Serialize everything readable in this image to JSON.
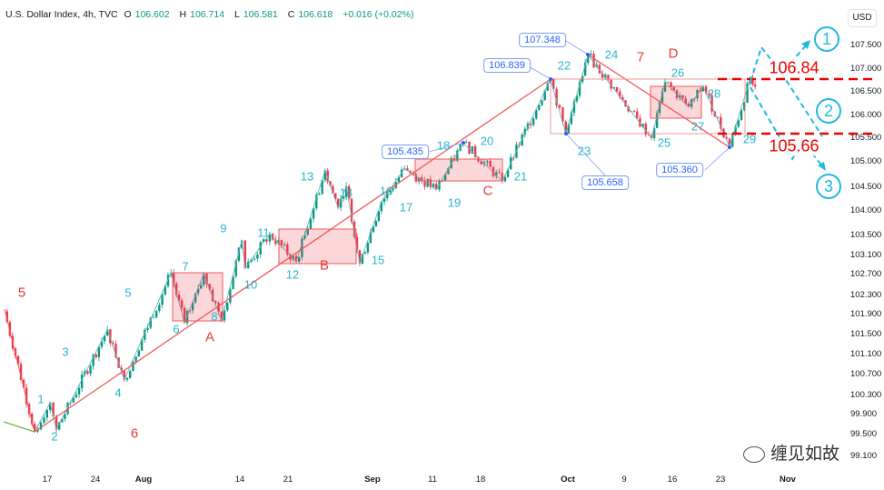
{
  "header": {
    "symbol": "U.S. Dollar Index, 4h, TVC",
    "open_label": "O",
    "open": "106.602",
    "high_label": "H",
    "high": "106.714",
    "low_label": "L",
    "low": "106.581",
    "close_label": "C",
    "close": "106.618",
    "change": "+0.016 (+0.02%)"
  },
  "currency": "USD",
  "y_axis": [
    "107.500",
    "107.000",
    "106.500",
    "106.000",
    "105.500",
    "105.000",
    "104.500",
    "104.000",
    "103.500",
    "103.100",
    "102.700",
    "102.300",
    "101.900",
    "101.500",
    "101.100",
    "100.700",
    "100.300",
    "99.900",
    "99.500",
    "99.100"
  ],
  "x_axis": [
    "17",
    "24",
    "Aug",
    "14",
    "21",
    "Sep",
    "11",
    "18",
    "Oct",
    "9",
    "16",
    "23",
    "Nov"
  ],
  "wave_labels": [
    "1",
    "2",
    "3",
    "4",
    "5",
    "6",
    "7",
    "8",
    "9",
    "10",
    "11",
    "12",
    "13",
    "14",
    "15",
    "16",
    "17",
    "18",
    "19",
    "20",
    "21",
    "22",
    "23",
    "24",
    "25",
    "26",
    "27",
    "28",
    "29"
  ],
  "red_labels": [
    "5",
    "6",
    "A",
    "B",
    "C",
    "7",
    "D"
  ],
  "callouts": [
    "107.348",
    "106.839",
    "105.435",
    "105.658",
    "105.360"
  ],
  "levels": {
    "upper": "106.84",
    "lower": "105.66"
  },
  "scenarios": [
    "1",
    "2",
    "3"
  ],
  "watermark": "缠见如故",
  "colors": {
    "up": "#089981",
    "down": "#f23645",
    "wave": "#26b6cc",
    "annot": "#e53935",
    "scenario": "#1fb8e0"
  },
  "chart_data": {
    "type": "candlestick",
    "x_unit": "weeks from Jul 17",
    "y_ticks": [
      107.5,
      107,
      106.5,
      106,
      105.5,
      105,
      104.5,
      104,
      103.5,
      103.1,
      102.7,
      102.3,
      101.9,
      101.5,
      101.1,
      100.7,
      100.3,
      99.9,
      99.5,
      99.1
    ],
    "pivots": [
      [
        -0.89,
        101.97
      ],
      [
        -0.26,
        99.56
      ],
      [
        0.06,
        100.15
      ],
      [
        0.19,
        99.6
      ],
      [
        1.25,
        101.6
      ],
      [
        1.6,
        100.6
      ],
      [
        2.57,
        102.74
      ],
      [
        2.85,
        101.73
      ],
      [
        3.25,
        102.72
      ],
      [
        3.62,
        101.78
      ],
      [
        4.04,
        103.4
      ],
      [
        4.11,
        102.83
      ],
      [
        4.62,
        103.53
      ],
      [
        5.17,
        102.97
      ],
      [
        5.77,
        104.83
      ],
      [
        6.04,
        104.07
      ],
      [
        6.21,
        104.52
      ],
      [
        6.49,
        102.93
      ],
      [
        6.94,
        104.19
      ],
      [
        7.42,
        104.87
      ],
      [
        8.08,
        104.45
      ],
      [
        8.64,
        105.4
      ],
      [
        9.45,
        104.62
      ],
      [
        10.45,
        106.78
      ],
      [
        10.77,
        105.6
      ],
      [
        11.23,
        107.3
      ],
      [
        12.55,
        105.5
      ],
      [
        12.83,
        106.72
      ],
      [
        13.32,
        106.18
      ],
      [
        13.62,
        106.62
      ],
      [
        14.17,
        105.32
      ],
      [
        14.6,
        106.8
      ],
      [
        14.7,
        106.62
      ]
    ]
  }
}
